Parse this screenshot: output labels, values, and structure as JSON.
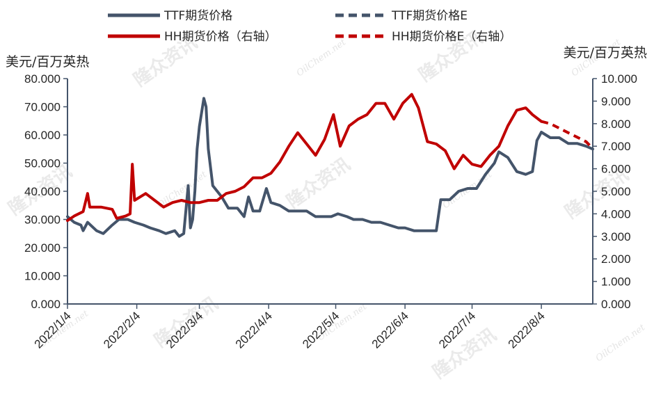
{
  "chart_data": {
    "type": "line",
    "left_unit": "美元/百万英热",
    "right_unit": "美元/百万英热",
    "y_left_ticks": [
      "0.000",
      "10.000",
      "20.000",
      "30.000",
      "40.000",
      "50.000",
      "60.000",
      "70.000",
      "80.000"
    ],
    "y_right_ticks": [
      "0.000",
      "1.000",
      "2.000",
      "3.000",
      "4.000",
      "5.000",
      "6.000",
      "7.000",
      "8.000",
      "9.000",
      "10.000"
    ],
    "y_left_range": [
      0,
      80
    ],
    "y_right_range": [
      0,
      10
    ],
    "x_ticks": [
      "2022/1/4",
      "2022/2/4",
      "2022/3/4",
      "2022/4/4",
      "2022/5/4",
      "2022/6/4",
      "2022/7/4",
      "2022/8/4"
    ],
    "x_range": [
      "2022/1/4",
      "2022/8/27"
    ],
    "legend": {
      "ttf": "TTF期货价格",
      "ttf_e": "TTF期货价格E",
      "hh": "HH期货价格（右轴）",
      "hh_e": "HH期货价格E（右轴）"
    },
    "colors": {
      "ttf": "#44546a",
      "hh": "#c00000"
    },
    "series": [
      {
        "name": "TTF期货价格",
        "axis": "left",
        "color": "#44546a",
        "style": "solid",
        "points": [
          [
            "2022/1/4",
            31
          ],
          [
            "2022/1/7",
            29
          ],
          [
            "2022/1/10",
            28
          ],
          [
            "2022/1/11",
            26
          ],
          [
            "2022/1/13",
            29
          ],
          [
            "2022/1/17",
            26
          ],
          [
            "2022/1/20",
            25
          ],
          [
            "2022/1/24",
            28
          ],
          [
            "2022/1/27",
            30
          ],
          [
            "2022/1/31",
            30
          ],
          [
            "2022/2/3",
            29
          ],
          [
            "2022/2/7",
            28
          ],
          [
            "2022/2/10",
            27
          ],
          [
            "2022/2/14",
            26
          ],
          [
            "2022/2/17",
            25
          ],
          [
            "2022/2/21",
            26
          ],
          [
            "2022/2/23",
            24
          ],
          [
            "2022/2/25",
            25
          ],
          [
            "2022/2/27",
            42
          ],
          [
            "2022/2/28",
            27
          ],
          [
            "2022/3/1",
            30
          ],
          [
            "2022/3/2",
            40
          ],
          [
            "2022/3/3",
            55
          ],
          [
            "2022/3/4",
            63
          ],
          [
            "2022/3/6",
            73
          ],
          [
            "2022/3/7",
            70
          ],
          [
            "2022/3/8",
            55
          ],
          [
            "2022/3/10",
            42
          ],
          [
            "2022/3/14",
            38
          ],
          [
            "2022/3/17",
            34
          ],
          [
            "2022/3/21",
            34
          ],
          [
            "2022/3/24",
            31
          ],
          [
            "2022/3/26",
            38
          ],
          [
            "2022/3/28",
            33
          ],
          [
            "2022/3/31",
            33
          ],
          [
            "2022/4/3",
            41
          ],
          [
            "2022/4/5",
            36
          ],
          [
            "2022/4/9",
            35
          ],
          [
            "2022/4/13",
            33
          ],
          [
            "2022/4/18",
            33
          ],
          [
            "2022/4/21",
            33
          ],
          [
            "2022/4/25",
            31
          ],
          [
            "2022/4/28",
            31
          ],
          [
            "2022/5/2",
            31
          ],
          [
            "2022/5/5",
            32
          ],
          [
            "2022/5/9",
            31
          ],
          [
            "2022/5/12",
            30
          ],
          [
            "2022/5/16",
            30
          ],
          [
            "2022/5/20",
            29
          ],
          [
            "2022/5/24",
            29
          ],
          [
            "2022/5/28",
            28
          ],
          [
            "2022/6/1",
            27
          ],
          [
            "2022/6/4",
            27
          ],
          [
            "2022/6/8",
            26
          ],
          [
            "2022/6/12",
            26
          ],
          [
            "2022/6/16",
            26
          ],
          [
            "2022/6/18",
            26
          ],
          [
            "2022/6/20",
            37
          ],
          [
            "2022/6/24",
            37
          ],
          [
            "2022/6/28",
            40
          ],
          [
            "2022/7/2",
            41
          ],
          [
            "2022/7/6",
            41
          ],
          [
            "2022/7/10",
            46
          ],
          [
            "2022/7/14",
            50
          ],
          [
            "2022/7/16",
            54
          ],
          [
            "2022/7/20",
            52
          ],
          [
            "2022/7/24",
            47
          ],
          [
            "2022/7/28",
            46
          ],
          [
            "2022/7/31",
            47
          ],
          [
            "2022/8/2",
            58
          ],
          [
            "2022/8/4",
            61
          ],
          [
            "2022/8/8",
            59
          ],
          [
            "2022/8/12",
            59
          ],
          [
            "2022/8/16",
            57
          ],
          [
            "2022/8/20",
            57
          ],
          [
            "2022/8/24",
            56
          ],
          [
            "2022/8/27",
            55
          ]
        ]
      },
      {
        "name": "TTF期货价格E",
        "axis": "left",
        "color": "#44546a",
        "style": "dashed",
        "points": []
      },
      {
        "name": "HH期货价格（右轴）",
        "axis": "right",
        "color": "#c00000",
        "style": "solid",
        "points": [
          [
            "2022/1/4",
            3.7
          ],
          [
            "2022/1/7",
            3.9
          ],
          [
            "2022/1/11",
            4.1
          ],
          [
            "2022/1/13",
            4.9
          ],
          [
            "2022/1/14",
            4.3
          ],
          [
            "2022/1/19",
            4.3
          ],
          [
            "2022/1/24",
            4.2
          ],
          [
            "2022/1/26",
            3.8
          ],
          [
            "2022/1/30",
            3.9
          ],
          [
            "2022/2/1",
            4.0
          ],
          [
            "2022/2/2",
            6.2
          ],
          [
            "2022/2/3",
            4.6
          ],
          [
            "2022/2/8",
            4.9
          ],
          [
            "2022/2/12",
            4.6
          ],
          [
            "2022/2/16",
            4.3
          ],
          [
            "2022/2/20",
            4.5
          ],
          [
            "2022/2/24",
            4.6
          ],
          [
            "2022/2/28",
            4.5
          ],
          [
            "2022/3/4",
            4.5
          ],
          [
            "2022/3/8",
            4.6
          ],
          [
            "2022/3/12",
            4.6
          ],
          [
            "2022/3/16",
            4.9
          ],
          [
            "2022/3/20",
            5.0
          ],
          [
            "2022/3/24",
            5.2
          ],
          [
            "2022/3/28",
            5.6
          ],
          [
            "2022/4/1",
            5.6
          ],
          [
            "2022/4/5",
            5.8
          ],
          [
            "2022/4/9",
            6.3
          ],
          [
            "2022/4/13",
            7.0
          ],
          [
            "2022/4/17",
            7.6
          ],
          [
            "2022/4/21",
            7.1
          ],
          [
            "2022/4/25",
            6.6
          ],
          [
            "2022/4/29",
            7.3
          ],
          [
            "2022/5/3",
            8.4
          ],
          [
            "2022/5/6",
            7.0
          ],
          [
            "2022/5/10",
            7.9
          ],
          [
            "2022/5/14",
            8.2
          ],
          [
            "2022/5/18",
            8.4
          ],
          [
            "2022/5/22",
            8.9
          ],
          [
            "2022/5/26",
            8.9
          ],
          [
            "2022/5/30",
            8.2
          ],
          [
            "2022/6/3",
            8.9
          ],
          [
            "2022/6/7",
            9.3
          ],
          [
            "2022/6/10",
            8.7
          ],
          [
            "2022/6/14",
            7.2
          ],
          [
            "2022/6/18",
            7.1
          ],
          [
            "2022/6/22",
            6.8
          ],
          [
            "2022/6/26",
            6.0
          ],
          [
            "2022/6/30",
            6.6
          ],
          [
            "2022/7/4",
            6.2
          ],
          [
            "2022/7/8",
            6.1
          ],
          [
            "2022/7/12",
            6.6
          ],
          [
            "2022/7/16",
            7.0
          ],
          [
            "2022/7/20",
            7.9
          ],
          [
            "2022/7/24",
            8.6
          ],
          [
            "2022/7/28",
            8.7
          ],
          [
            "2022/7/31",
            8.4
          ],
          [
            "2022/8/4",
            8.1
          ]
        ]
      },
      {
        "name": "HH期货价格E（右轴）",
        "axis": "right",
        "color": "#c00000",
        "style": "dashed",
        "points": [
          [
            "2022/8/4",
            8.1
          ],
          [
            "2022/8/8",
            8.0
          ],
          [
            "2022/8/12",
            7.8
          ],
          [
            "2022/8/16",
            7.6
          ],
          [
            "2022/8/20",
            7.4
          ],
          [
            "2022/8/24",
            7.2
          ],
          [
            "2022/8/27",
            6.9
          ]
        ]
      }
    ]
  },
  "watermark": {
    "cn": "隆众资讯",
    "en": "OilChem.net"
  }
}
